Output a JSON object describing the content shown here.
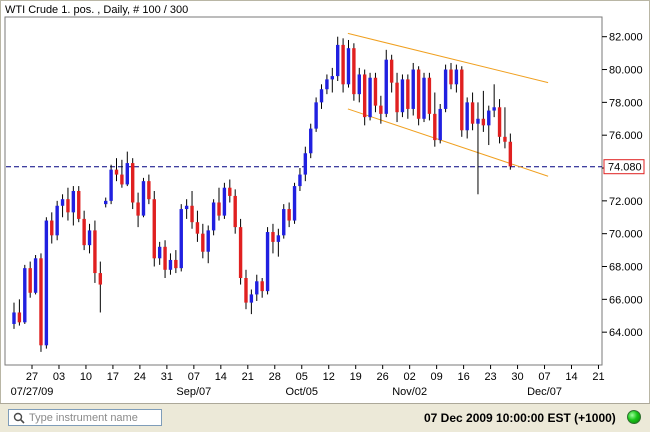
{
  "window": {
    "title": "WTI Crude 1. pos. , Daily, # 100 / 300"
  },
  "search": {
    "placeholder": "Type instrument name",
    "value": ""
  },
  "status": {
    "datetime": "07 Dec 2009 10:00:00",
    "timezone": "EST (+1000)",
    "connection_color": "#18c418"
  },
  "colors": {
    "up_candle": "#2020e0",
    "down_candle": "#e02020",
    "wick": "#000000",
    "channel": "#f0a020",
    "price_line": "#000080",
    "current_price_box": "#e02020"
  },
  "chart_data": {
    "type": "candlestick",
    "title": "WTI Crude 1. pos. , Daily, # 100 / 300",
    "xlabel": "",
    "ylabel": "",
    "ylim": [
      62.0,
      83.2
    ],
    "yticks": [
      "82.000",
      "80.000",
      "78.000",
      "76.000",
      "74.000",
      "72.000",
      "70.000",
      "68.000",
      "66.000",
      "64.000"
    ],
    "ytick_values": [
      82,
      80,
      78,
      76,
      74,
      72,
      70,
      68,
      66,
      64
    ],
    "x_day_labels": [
      "27",
      "03",
      "10",
      "17",
      "24",
      "31",
      "07",
      "14",
      "21",
      "28",
      "05",
      "12",
      "19",
      "26",
      "02",
      "09",
      "16",
      "23",
      "30",
      "07",
      "14",
      "21"
    ],
    "x_day_label_index": [
      0,
      5,
      10,
      15,
      20,
      25,
      30,
      35,
      40,
      45,
      50,
      55,
      60,
      65,
      70,
      75,
      80,
      85,
      90,
      95,
      100,
      105
    ],
    "x_period_labels": [
      {
        "label": "07/27/09",
        "index": -1
      },
      {
        "label": "Sep/07",
        "index": 30
      },
      {
        "label": "Oct/05",
        "index": 50
      },
      {
        "label": "Nov/02",
        "index": 70
      },
      {
        "label": "Dec/07",
        "index": 95
      }
    ],
    "current_price": 74.08,
    "current_price_label": "74.080",
    "grid": false,
    "candles": [
      [
        64.5,
        65.8,
        64.2,
        65.2
      ],
      [
        65.2,
        66.0,
        64.4,
        64.6
      ],
      [
        64.6,
        68.1,
        64.5,
        67.9
      ],
      [
        67.9,
        68.3,
        66.1,
        66.4
      ],
      [
        66.4,
        68.7,
        66.3,
        68.5
      ],
      [
        68.5,
        68.8,
        62.8,
        63.2
      ],
      [
        63.2,
        71.0,
        63.0,
        70.8
      ],
      [
        70.8,
        71.3,
        69.4,
        69.9
      ],
      [
        69.9,
        72.0,
        69.6,
        71.7
      ],
      [
        71.7,
        72.4,
        71.0,
        72.1
      ],
      [
        72.1,
        72.8,
        70.8,
        71.3
      ],
      [
        71.3,
        72.9,
        70.5,
        72.6
      ],
      [
        72.6,
        72.9,
        70.7,
        70.9
      ],
      [
        70.9,
        71.4,
        69.0,
        69.3
      ],
      [
        69.3,
        70.6,
        68.8,
        70.2
      ],
      [
        70.2,
        70.8,
        67.0,
        67.6
      ],
      [
        67.6,
        68.3,
        65.2,
        66.9
      ],
      [
        71.8,
        72.2,
        71.6,
        72.0
      ],
      [
        72.0,
        74.2,
        71.8,
        73.9
      ],
      [
        73.9,
        74.6,
        73.2,
        73.6
      ],
      [
        73.6,
        74.5,
        72.8,
        73.0
      ],
      [
        73.0,
        75.0,
        72.9,
        74.3
      ],
      [
        74.3,
        74.6,
        71.5,
        71.9
      ],
      [
        71.9,
        72.5,
        70.4,
        71.1
      ],
      [
        71.1,
        73.4,
        71.0,
        73.2
      ],
      [
        73.2,
        73.6,
        71.8,
        72.1
      ],
      [
        72.1,
        72.6,
        68.0,
        68.5
      ],
      [
        68.5,
        69.5,
        68.1,
        69.2
      ],
      [
        69.2,
        69.6,
        67.3,
        67.8
      ],
      [
        67.8,
        68.8,
        67.5,
        68.4
      ],
      [
        68.4,
        69.0,
        67.6,
        67.9
      ],
      [
        67.9,
        71.8,
        67.7,
        71.5
      ],
      [
        71.5,
        72.1,
        70.9,
        71.7
      ],
      [
        71.7,
        72.6,
        70.3,
        70.7
      ],
      [
        70.7,
        71.4,
        69.5,
        70.0
      ],
      [
        70.0,
        70.6,
        68.5,
        68.9
      ],
      [
        68.9,
        70.5,
        68.2,
        70.2
      ],
      [
        70.2,
        72.1,
        69.9,
        71.9
      ],
      [
        71.9,
        72.8,
        70.8,
        71.1
      ],
      [
        71.1,
        73.1,
        70.9,
        72.8
      ],
      [
        72.8,
        73.3,
        71.9,
        72.3
      ],
      [
        72.3,
        72.7,
        70.0,
        70.4
      ],
      [
        70.4,
        70.9,
        66.9,
        67.3
      ],
      [
        67.3,
        67.8,
        65.4,
        65.8
      ],
      [
        65.8,
        66.6,
        65.1,
        66.3
      ],
      [
        66.3,
        67.5,
        65.9,
        67.1
      ],
      [
        67.1,
        67.3,
        66.1,
        66.5
      ],
      [
        66.5,
        70.4,
        66.3,
        70.1
      ],
      [
        70.1,
        70.6,
        68.8,
        69.5
      ],
      [
        69.5,
        70.3,
        68.6,
        69.9
      ],
      [
        69.9,
        71.8,
        69.7,
        71.5
      ],
      [
        71.5,
        71.9,
        70.4,
        70.8
      ],
      [
        70.8,
        73.1,
        70.6,
        72.9
      ],
      [
        72.9,
        74.0,
        72.6,
        73.6
      ],
      [
        73.6,
        75.3,
        73.2,
        74.9
      ],
      [
        74.9,
        76.7,
        74.6,
        76.4
      ],
      [
        76.4,
        78.3,
        76.2,
        78.0
      ],
      [
        78.0,
        79.1,
        77.6,
        78.8
      ],
      [
        78.8,
        79.7,
        78.5,
        79.4
      ],
      [
        79.4,
        80.1,
        78.6,
        79.6
      ],
      [
        79.6,
        82.0,
        79.3,
        81.5
      ],
      [
        81.5,
        81.9,
        78.6,
        79.1
      ],
      [
        79.1,
        81.8,
        78.9,
        81.3
      ],
      [
        81.3,
        81.6,
        78.1,
        78.5
      ],
      [
        78.5,
        80.1,
        78.0,
        79.7
      ],
      [
        79.7,
        80.0,
        76.6,
        77.1
      ],
      [
        77.1,
        79.8,
        76.9,
        79.5
      ],
      [
        79.5,
        79.8,
        77.4,
        77.8
      ],
      [
        77.8,
        78.4,
        76.7,
        77.3
      ],
      [
        77.3,
        81.2,
        77.1,
        80.6
      ],
      [
        80.6,
        80.9,
        78.6,
        79.2
      ],
      [
        79.2,
        79.8,
        76.8,
        77.4
      ],
      [
        77.4,
        79.7,
        77.1,
        79.4
      ],
      [
        79.4,
        79.7,
        77.0,
        77.6
      ],
      [
        77.6,
        80.4,
        77.2,
        80.0
      ],
      [
        80.0,
        80.2,
        76.6,
        77.0
      ],
      [
        77.0,
        79.8,
        76.8,
        79.5
      ],
      [
        79.5,
        79.8,
        76.9,
        77.3
      ],
      [
        77.3,
        78.6,
        75.3,
        75.7
      ],
      [
        75.7,
        77.9,
        75.5,
        77.6
      ],
      [
        77.6,
        80.3,
        77.4,
        80.0
      ],
      [
        80.0,
        80.4,
        78.8,
        79.1
      ],
      [
        79.1,
        80.3,
        78.6,
        80.0
      ],
      [
        80.0,
        80.2,
        75.9,
        76.3
      ],
      [
        76.3,
        78.3,
        75.8,
        78.0
      ],
      [
        78.0,
        78.6,
        76.3,
        76.7
      ],
      [
        76.7,
        78.0,
        72.4,
        77.0
      ],
      [
        77.0,
        78.7,
        76.2,
        76.6
      ],
      [
        76.6,
        77.8,
        75.4,
        77.5
      ],
      [
        77.5,
        79.1,
        77.1,
        77.7
      ],
      [
        77.7,
        78.2,
        75.5,
        75.9
      ],
      [
        75.9,
        77.7,
        75.2,
        75.6
      ],
      [
        75.6,
        76.1,
        73.9,
        74.1
      ]
    ]
  }
}
